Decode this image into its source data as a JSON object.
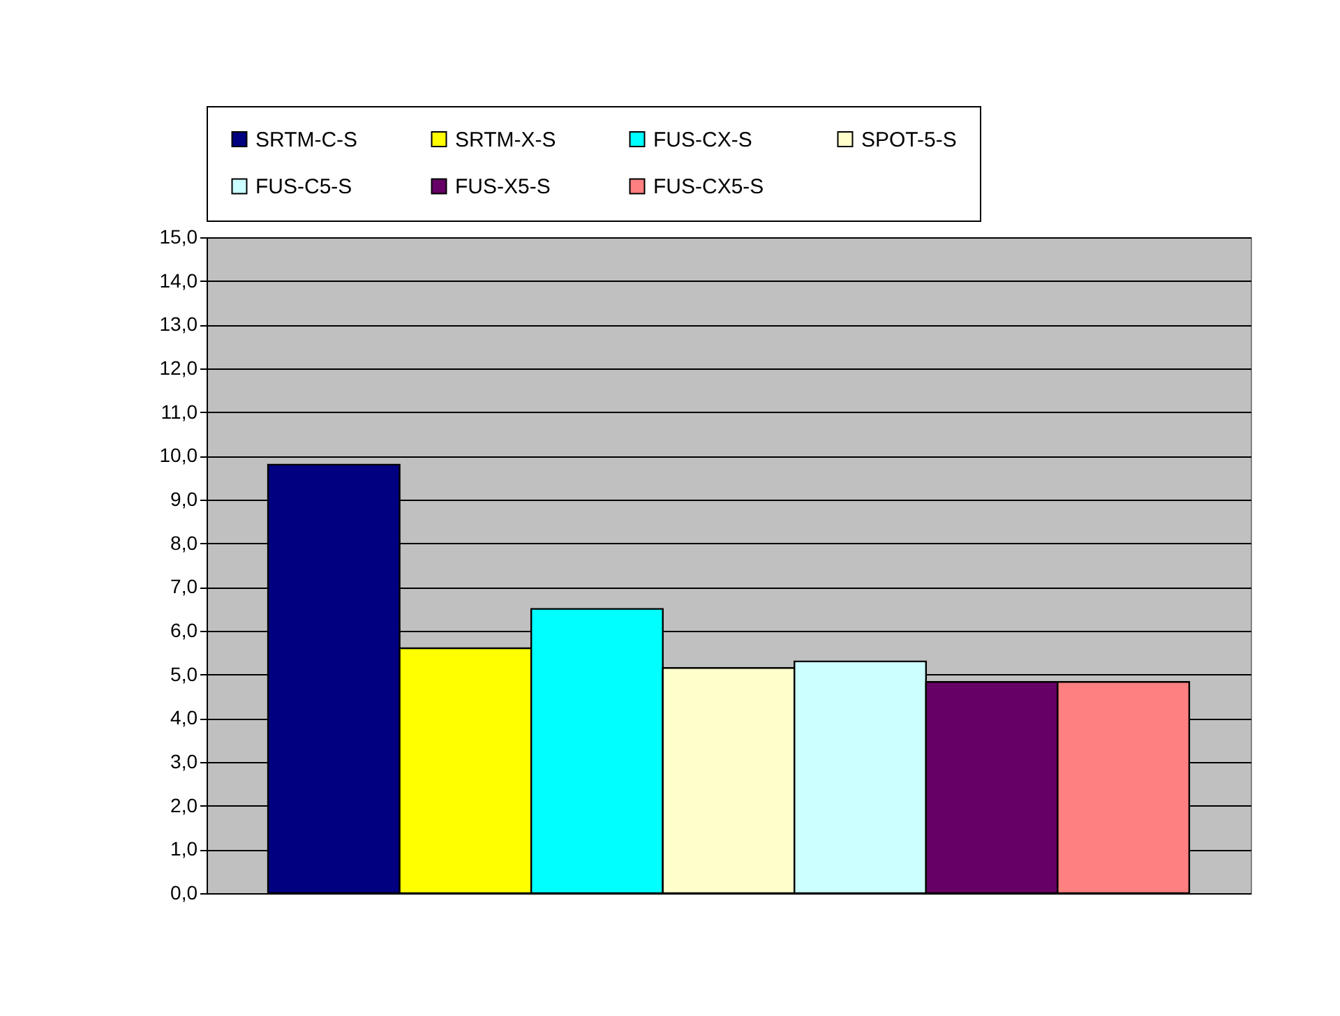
{
  "chart_data": {
    "type": "bar",
    "categories": [
      null
    ],
    "series": [
      {
        "name": "SRTM-C-S",
        "color": "#000080",
        "values": [
          9.8
        ]
      },
      {
        "name": "SRTM-X-S",
        "color": "#ffff00",
        "values": [
          5.6
        ]
      },
      {
        "name": "FUS-CX-S",
        "color": "#00ffff",
        "values": [
          6.5
        ]
      },
      {
        "name": "SPOT-5-S",
        "color": "#ffffcc",
        "values": [
          5.15
        ]
      },
      {
        "name": "FUS-C5-S",
        "color": "#ccffff",
        "values": [
          5.3
        ]
      },
      {
        "name": "FUS-X5-S",
        "color": "#660066",
        "values": [
          4.83
        ]
      },
      {
        "name": "FUS-CX5-S",
        "color": "#ff8080",
        "values": [
          4.83
        ]
      }
    ],
    "ylim": [
      0,
      15
    ],
    "yticks": [
      {
        "value": 0,
        "label": "0,0"
      },
      {
        "value": 1,
        "label": "1,0"
      },
      {
        "value": 2,
        "label": "2,0"
      },
      {
        "value": 3,
        "label": "3,0"
      },
      {
        "value": 4,
        "label": "4,0"
      },
      {
        "value": 5,
        "label": "5,0"
      },
      {
        "value": 6,
        "label": "6,0"
      },
      {
        "value": 7,
        "label": "7,0"
      },
      {
        "value": 8,
        "label": "8,0"
      },
      {
        "value": 9,
        "label": "9,0"
      },
      {
        "value": 10,
        "label": "10,0"
      },
      {
        "value": 11,
        "label": "11,0"
      },
      {
        "value": 12,
        "label": "12,0"
      },
      {
        "value": 13,
        "label": "13,0"
      },
      {
        "value": 14,
        "label": "14,0"
      },
      {
        "value": 15,
        "label": "15,0"
      }
    ],
    "grid": true,
    "legend": "top"
  }
}
